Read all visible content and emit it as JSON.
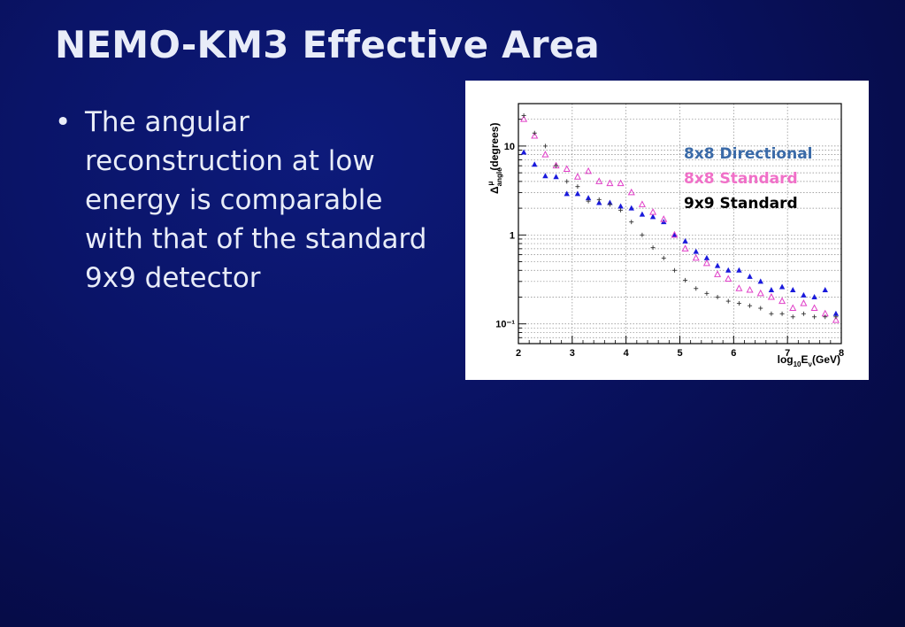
{
  "slide": {
    "title": "NEMO-KM3 Effective Area",
    "bullet": "The angular reconstruction at low energy is comparable with that of the standard 9x9 detector"
  },
  "colors": {
    "background": "#070d4e",
    "text": "#e8ecf8",
    "directional": "#1a1adc",
    "standard8": "#e040c8",
    "standard9": "#333333",
    "legend_directional": "#3a6aa8",
    "legend_standard8": "#f070c8",
    "legend_standard9": "#000000"
  },
  "chart_data": {
    "type": "scatter",
    "title": "",
    "xlabel": "log₁₀E_ν(GeV)",
    "ylabel": "Δ^μ_angle(degrees)",
    "xlim": [
      2,
      8
    ],
    "ylim": [
      0.06,
      30
    ],
    "yscale": "log",
    "grid": true,
    "x_ticks": [
      "2",
      "3",
      "4",
      "5",
      "6",
      "7",
      "8"
    ],
    "y_ticks": [
      {
        "value": 10,
        "label": "10"
      },
      {
        "value": 1,
        "label": "1"
      },
      {
        "value": 0.1,
        "label": "10⁻¹"
      }
    ],
    "legend": [
      {
        "label": "8x8 Directional",
        "color": "#3a6aa8"
      },
      {
        "label": "8x8 Standard",
        "color": "#f070c8"
      },
      {
        "label": "9x9 Standard",
        "color": "#000000"
      }
    ],
    "series": [
      {
        "name": "8x8 Directional",
        "marker": "filled-triangle",
        "color": "#1a1adc",
        "x": [
          2.1,
          2.3,
          2.5,
          2.7,
          2.9,
          3.1,
          3.3,
          3.5,
          3.7,
          3.9,
          4.1,
          4.3,
          4.5,
          4.7,
          4.9,
          5.1,
          5.3,
          5.5,
          5.7,
          5.9,
          6.1,
          6.3,
          6.5,
          6.7,
          6.9,
          7.1,
          7.3,
          7.5,
          7.7,
          7.9
        ],
        "y": [
          8.5,
          6.2,
          4.6,
          4.5,
          2.9,
          2.9,
          2.6,
          2.3,
          2.3,
          2.1,
          2.0,
          1.7,
          1.6,
          1.4,
          1.0,
          0.85,
          0.65,
          0.55,
          0.45,
          0.4,
          0.4,
          0.34,
          0.3,
          0.24,
          0.26,
          0.24,
          0.21,
          0.2,
          0.24,
          0.13
        ]
      },
      {
        "name": "8x8 Standard",
        "marker": "open-triangle",
        "color": "#e040c8",
        "x": [
          2.1,
          2.3,
          2.5,
          2.7,
          2.9,
          3.1,
          3.3,
          3.5,
          3.7,
          3.9,
          4.1,
          4.3,
          4.5,
          4.7,
          4.9,
          5.1,
          5.3,
          5.5,
          5.7,
          5.9,
          6.1,
          6.3,
          6.5,
          6.7,
          6.9,
          7.1,
          7.3,
          7.5,
          7.7,
          7.9
        ],
        "y": [
          20,
          13,
          8,
          6,
          5.5,
          4.5,
          5.2,
          4.0,
          3.8,
          3.8,
          3.0,
          2.2,
          1.8,
          1.5,
          1.0,
          0.7,
          0.55,
          0.48,
          0.36,
          0.32,
          0.25,
          0.24,
          0.22,
          0.2,
          0.18,
          0.15,
          0.17,
          0.15,
          0.13,
          0.11
        ]
      },
      {
        "name": "9x9 Standard",
        "marker": "plus",
        "color": "#333333",
        "x": [
          2.1,
          2.3,
          2.5,
          2.7,
          2.9,
          3.1,
          3.3,
          3.5,
          3.7,
          3.9,
          4.1,
          4.3,
          4.5,
          4.7,
          4.9,
          5.1,
          5.3,
          5.5,
          5.7,
          5.9,
          6.1,
          6.3,
          6.5,
          6.7,
          6.9,
          7.1,
          7.3,
          7.5,
          7.7,
          7.9
        ],
        "y": [
          22,
          14,
          10,
          6,
          4.0,
          3.5,
          2.4,
          2.5,
          2.2,
          1.9,
          1.4,
          1.0,
          0.72,
          0.55,
          0.4,
          0.31,
          0.25,
          0.22,
          0.2,
          0.18,
          0.17,
          0.16,
          0.15,
          0.13,
          0.13,
          0.12,
          0.13,
          0.12,
          0.12,
          0.12
        ]
      }
    ]
  }
}
